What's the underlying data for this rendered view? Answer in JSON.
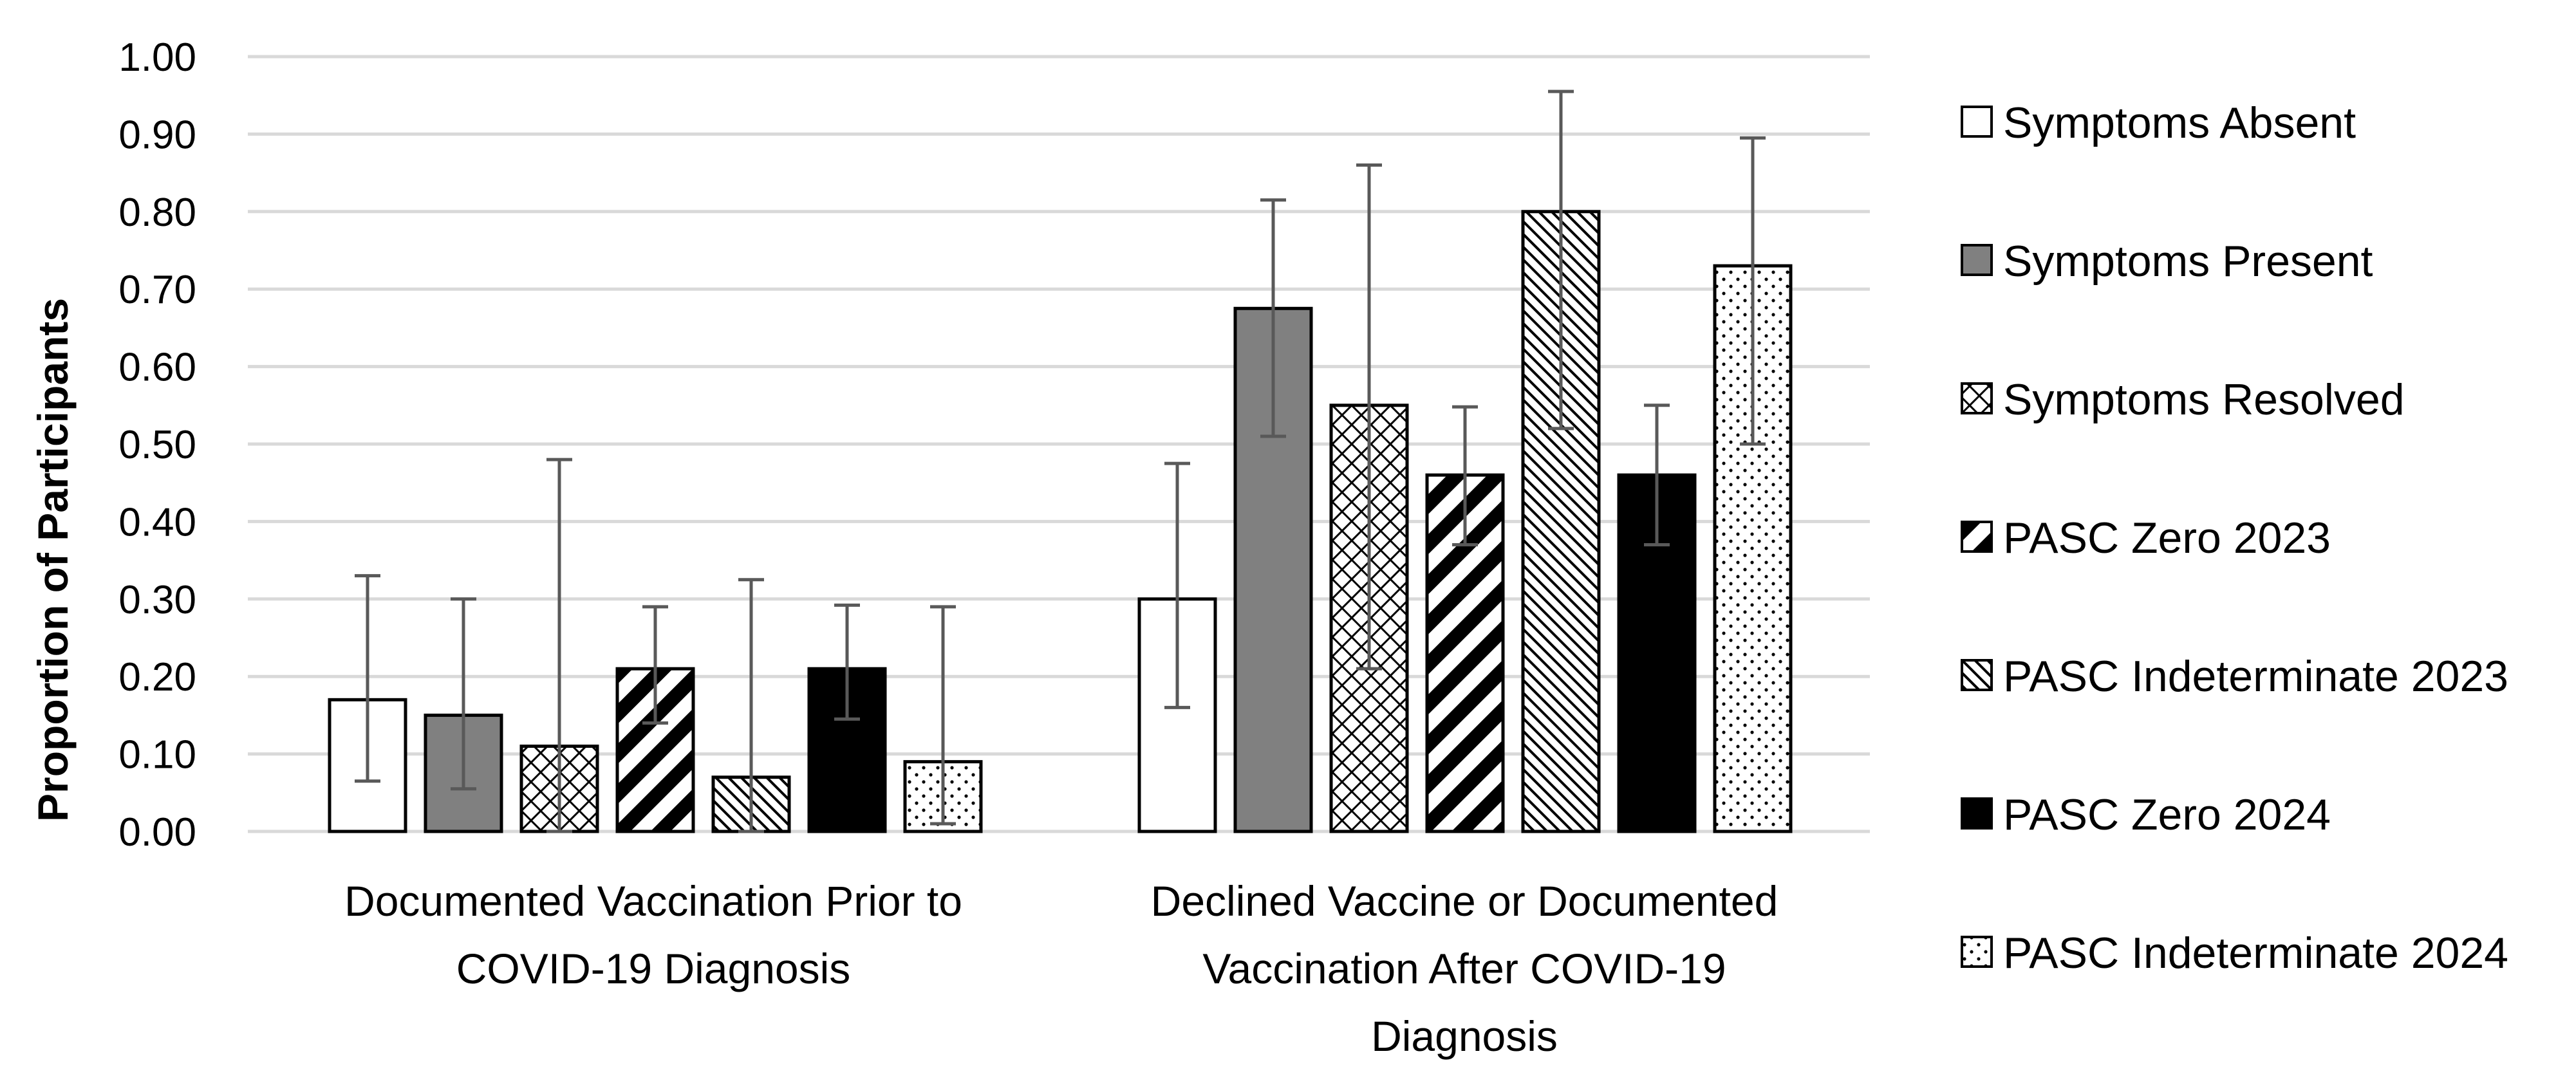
{
  "chart_data": {
    "type": "bar",
    "title": "",
    "xlabel": "",
    "ylabel": "Proportion of Participants",
    "ylim": [
      0,
      1.0
    ],
    "yticks": [
      "0.00",
      "0.10",
      "0.20",
      "0.30",
      "0.40",
      "0.50",
      "0.60",
      "0.70",
      "0.80",
      "0.90",
      "1.00"
    ],
    "grid": true,
    "legend_position": "right",
    "categories": [
      [
        "Documented Vaccination Prior to",
        "COVID-19 Diagnosis"
      ],
      [
        "Declined Vaccine or Documented",
        "Vaccination After COVID-19",
        "Diagnosis"
      ]
    ],
    "series": [
      {
        "name": "Symptoms Absent",
        "pattern": "white",
        "values": [
          0.17,
          0.3
        ],
        "err_low": [
          0.065,
          0.16
        ],
        "err_high": [
          0.33,
          0.475
        ]
      },
      {
        "name": "Symptoms Present",
        "pattern": "gray",
        "values": [
          0.15,
          0.675
        ],
        "err_low": [
          0.055,
          0.51
        ],
        "err_high": [
          0.3,
          0.815
        ]
      },
      {
        "name": "Symptoms Resolved",
        "pattern": "diamond",
        "values": [
          0.11,
          0.55
        ],
        "err_low": [
          0.0,
          0.21
        ],
        "err_high": [
          0.48,
          0.86
        ]
      },
      {
        "name": "PASC Zero 2023",
        "pattern": "wide-diag",
        "values": [
          0.21,
          0.46
        ],
        "err_low": [
          0.14,
          0.37
        ],
        "err_high": [
          0.29,
          0.548
        ]
      },
      {
        "name": "PASC Indeterminate 2023",
        "pattern": "fine-diag",
        "values": [
          0.07,
          0.8
        ],
        "err_low": [
          0.0,
          0.52
        ],
        "err_high": [
          0.325,
          0.955
        ]
      },
      {
        "name": "PASC Zero 2024",
        "pattern": "black",
        "values": [
          0.21,
          0.46
        ],
        "err_low": [
          0.145,
          0.37
        ],
        "err_high": [
          0.292,
          0.55
        ]
      },
      {
        "name": "PASC Indeterminate 2024",
        "pattern": "dots",
        "values": [
          0.09,
          0.73
        ],
        "err_low": [
          0.01,
          0.5
        ],
        "err_high": [
          0.29,
          0.895
        ]
      }
    ],
    "colors": {
      "gray": "#808080",
      "black": "#000000",
      "grid": "#d9d9d9",
      "error": "#595959"
    }
  }
}
